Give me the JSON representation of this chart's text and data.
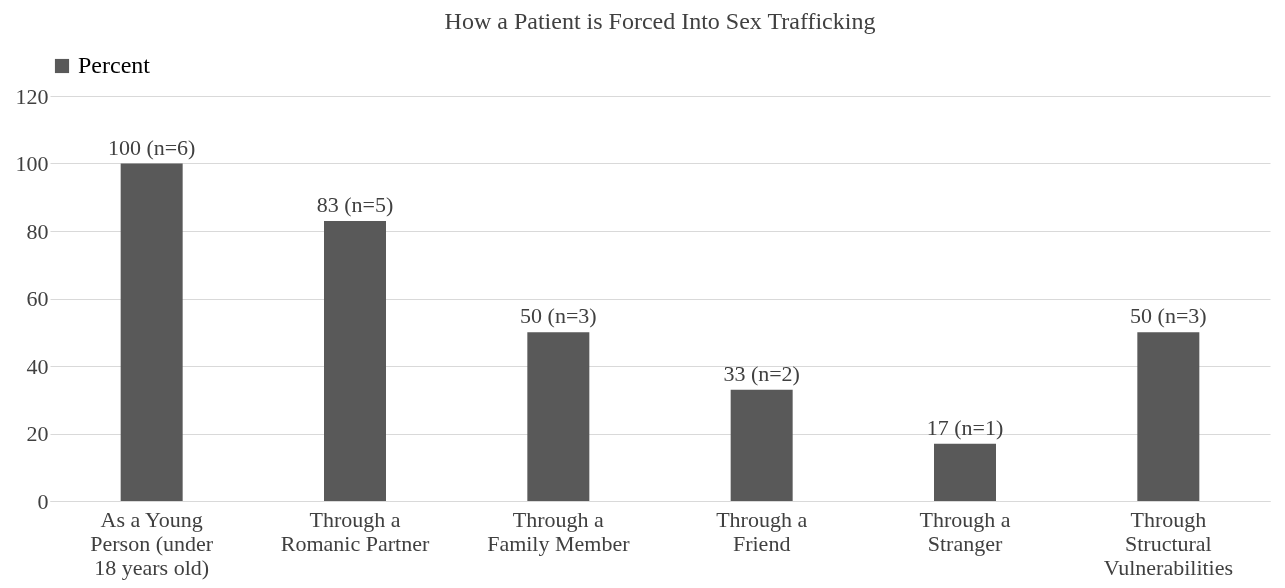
{
  "chart_data": {
    "type": "bar",
    "title": "How a Patient is Forced Into Sex Trafficking",
    "categories": [
      "As a Young Person (under 18 years old)",
      "Through a Romanic Partner",
      "Through a Family Member",
      "Through a Friend",
      "Through a Stranger",
      "Through Structural Vulnerabilities"
    ],
    "series": [
      {
        "name": "Percent",
        "color": "#595959",
        "values": [
          100,
          83,
          50,
          33,
          17,
          50
        ]
      }
    ],
    "value_labels": [
      "100 (n=6)",
      "83 (n=5)",
      "50 (n=3)",
      "33 (n=2)",
      "17 (n=1)",
      "50 (n=3)"
    ],
    "ylim": [
      0,
      120
    ],
    "yticks": [
      0,
      20,
      40,
      60,
      80,
      100,
      120
    ],
    "grid": "y",
    "legend": "top"
  }
}
